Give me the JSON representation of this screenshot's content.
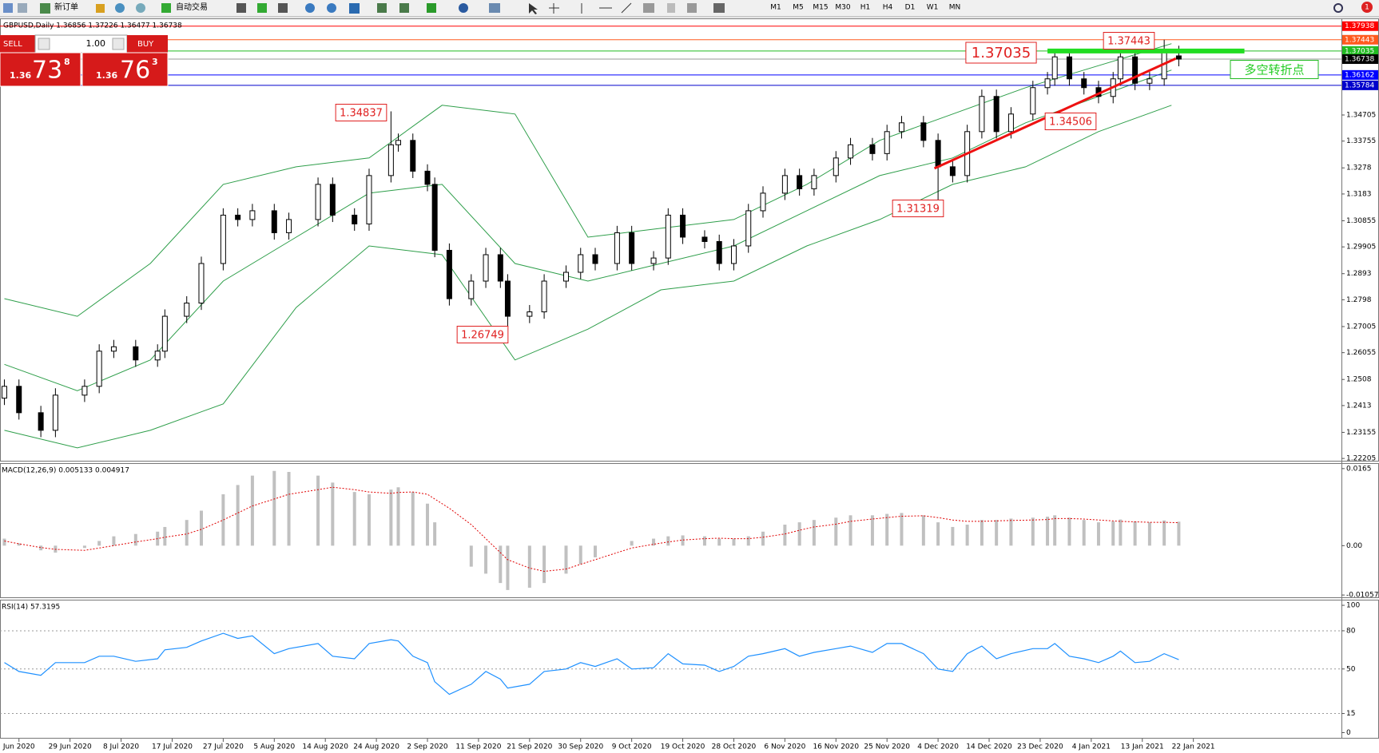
{
  "toolbar": {
    "new_order": "新订单",
    "auto_trading": "自动交易",
    "timeframes": [
      "M1",
      "M5",
      "M15",
      "M30",
      "H1",
      "H4",
      "D1",
      "W1",
      "MN"
    ],
    "notifications": "1"
  },
  "trade_panel": {
    "sell": "SELL",
    "buy": "BUY",
    "lots": "1.00",
    "sell_price": [
      "1.36",
      "73",
      "8"
    ],
    "buy_price": [
      "1.36",
      "76",
      "3"
    ]
  },
  "chart_data": [
    {
      "type": "candlestick",
      "title": "GBPUSD,Daily  1.36856 1.37226 1.36477 1.36738",
      "x": [
        0,
        2,
        5,
        7,
        11,
        13,
        15,
        18,
        21,
        22,
        25,
        27,
        30,
        32,
        34,
        37,
        39,
        43,
        45,
        48,
        50,
        53,
        54,
        56,
        58,
        59,
        61,
        64,
        66,
        68,
        69,
        72,
        74,
        77,
        79,
        81,
        84,
        86,
        89,
        91,
        93,
        96,
        98,
        100,
        102,
        104,
        107,
        109,
        111,
        114,
        116,
        119,
        121,
        123,
        126,
        128,
        130,
        132,
        134,
        136,
        138,
        141,
        143,
        144,
        146,
        148,
        150,
        152,
        153,
        155,
        157,
        159,
        161
      ],
      "open": [
        1.244,
        1.2483,
        1.2387,
        1.2323,
        1.2451,
        1.2483,
        1.2611,
        1.2627,
        1.2579,
        1.2611,
        1.2738,
        1.2786,
        1.293,
        1.3106,
        1.309,
        1.3122,
        1.3042,
        1.309,
        1.3218,
        1.3106,
        1.3074,
        1.325,
        1.3362,
        1.3378,
        1.3266,
        1.3218,
        1.2978,
        1.2802,
        1.2866,
        1.2962,
        1.2866,
        1.2738,
        1.2754,
        1.2866,
        1.2898,
        1.2962,
        1.293,
        1.3042,
        1.293,
        1.295,
        1.3106,
        1.3026,
        1.301,
        1.293,
        1.2994,
        1.3122,
        1.3186,
        1.325,
        1.3202,
        1.325,
        1.3314,
        1.3362,
        1.333,
        1.341,
        1.3442,
        1.3378,
        1.3282,
        1.325,
        1.341,
        1.3538,
        1.341,
        1.3474,
        1.357,
        1.3602,
        1.3682,
        1.3602,
        1.357,
        1.3538,
        1.3602,
        1.3682,
        1.3586,
        1.3602,
        1.36856
      ],
      "high": [
        1.2508,
        1.2508,
        1.2412,
        1.2476,
        1.2508,
        1.2636,
        1.2652,
        1.2652,
        1.2636,
        1.2763,
        1.2811,
        1.2955,
        1.3131,
        1.3131,
        1.3147,
        1.3147,
        1.3115,
        1.3243,
        1.3243,
        1.3131,
        1.3275,
        1.34837,
        1.3403,
        1.3403,
        1.3291,
        1.3243,
        1.3003,
        1.2891,
        1.2987,
        1.2987,
        1.2891,
        1.2779,
        1.2891,
        1.2923,
        1.2987,
        1.2987,
        1.3067,
        1.3067,
        1.2975,
        1.3131,
        1.3131,
        1.3051,
        1.3035,
        1.3019,
        1.3147,
        1.3211,
        1.3275,
        1.3275,
        1.3275,
        1.3339,
        1.3387,
        1.3387,
        1.3435,
        1.3467,
        1.3467,
        1.3403,
        1.3307,
        1.3435,
        1.3563,
        1.3563,
        1.3499,
        1.3595,
        1.3627,
        1.3707,
        1.3707,
        1.3627,
        1.3595,
        1.3627,
        1.3707,
        1.3707,
        1.3627,
        1.37443,
        1.37226
      ],
      "low": [
        1.2415,
        1.2362,
        1.2298,
        1.2298,
        1.2426,
        1.2458,
        1.2586,
        1.2554,
        1.2554,
        1.2586,
        1.2713,
        1.2761,
        1.2905,
        1.3065,
        1.3065,
        1.3017,
        1.3017,
        1.3065,
        1.3081,
        1.3049,
        1.3049,
        1.3225,
        1.3337,
        1.3241,
        1.3193,
        1.2953,
        1.2777,
        1.2777,
        1.2841,
        1.2841,
        1.26749,
        1.2713,
        1.2729,
        1.2841,
        1.2873,
        1.2905,
        1.2905,
        1.2905,
        1.2905,
        1.2925,
        1.3001,
        1.2985,
        1.2905,
        1.2905,
        1.2969,
        1.3097,
        1.3161,
        1.3177,
        1.3177,
        1.3225,
        1.3289,
        1.3305,
        1.3305,
        1.3385,
        1.3353,
        1.31319,
        1.3225,
        1.3225,
        1.3385,
        1.3385,
        1.3385,
        1.34506,
        1.3545,
        1.3577,
        1.3577,
        1.3545,
        1.3513,
        1.3513,
        1.3577,
        1.3561,
        1.3561,
        1.3577,
        1.36477
      ],
      "close": [
        1.2483,
        1.2387,
        1.2323,
        1.2451,
        1.2483,
        1.2611,
        1.2627,
        1.2579,
        1.2611,
        1.2738,
        1.2786,
        1.293,
        1.3106,
        1.309,
        1.3122,
        1.3042,
        1.309,
        1.3218,
        1.3106,
        1.3074,
        1.325,
        1.3362,
        1.3378,
        1.3266,
        1.3218,
        1.2978,
        1.2802,
        1.2866,
        1.2962,
        1.2866,
        1.2738,
        1.2754,
        1.2866,
        1.2898,
        1.2962,
        1.293,
        1.3042,
        1.293,
        1.295,
        1.3106,
        1.3026,
        1.301,
        1.293,
        1.2994,
        1.3122,
        1.3186,
        1.325,
        1.3202,
        1.325,
        1.3314,
        1.3362,
        1.333,
        1.341,
        1.3442,
        1.3378,
        1.3282,
        1.325,
        1.341,
        1.3538,
        1.341,
        1.3474,
        1.357,
        1.3602,
        1.3682,
        1.3602,
        1.357,
        1.3538,
        1.3602,
        1.3682,
        1.3586,
        1.3602,
        1.3698,
        1.36738
      ],
      "up_color": "#ffffff",
      "down_color": "#000000",
      "outline_color": "#000000",
      "bands": {
        "color": "#2e9e4a",
        "x": [
          0,
          10,
          20,
          30,
          40,
          50,
          60,
          70,
          80,
          90,
          100,
          110,
          120,
          130,
          140,
          150,
          160
        ],
        "upper": [
          1.2802,
          1.2738,
          1.293,
          1.3218,
          1.3282,
          1.3314,
          1.3506,
          1.3474,
          1.3026,
          1.3058,
          1.309,
          1.3218,
          1.3378,
          1.3474,
          1.357,
          1.365,
          1.373
        ],
        "middle": [
          1.2563,
          1.2467,
          1.2579,
          1.2866,
          1.3026,
          1.3186,
          1.3218,
          1.293,
          1.2866,
          1.293,
          1.2994,
          1.3122,
          1.325,
          1.3314,
          1.3442,
          1.3538,
          1.3634
        ],
        "lower": [
          1.2323,
          1.2259,
          1.2323,
          1.2419,
          1.277,
          1.2994,
          1.2962,
          1.2579,
          1.2691,
          1.2834,
          1.2866,
          1.2994,
          1.309,
          1.3218,
          1.3282,
          1.341,
          1.3506
        ]
      },
      "xlim": [
        -0.6,
        183.3
      ],
      "ylim": [
        1.22122,
        1.38192
      ],
      "yticks": [
        1.34705,
        1.33755,
        1.3278,
        1.3183,
        1.30855,
        1.29905,
        1.2893,
        1.2798,
        1.27005,
        1.26055,
        1.2508,
        1.2413,
        1.23155,
        1.22205
      ],
      "xticks": [
        {
          "value": 2,
          "label": "Jun 2020"
        },
        {
          "value": 9,
          "label": "29 Jun 2020"
        },
        {
          "value": 16,
          "label": "8 Jul 2020"
        },
        {
          "value": 23,
          "label": "17 Jul 2020"
        },
        {
          "value": 30,
          "label": "27 Jul 2020"
        },
        {
          "value": 37,
          "label": "5 Aug 2020"
        },
        {
          "value": 44,
          "label": "14 Aug 2020"
        },
        {
          "value": 51,
          "label": "24 Aug 2020"
        },
        {
          "value": 58,
          "label": "2 Sep 2020"
        },
        {
          "value": 65,
          "label": "11 Sep 2020"
        },
        {
          "value": 72,
          "label": "21 Sep 2020"
        },
        {
          "value": 79,
          "label": "30 Sep 2020"
        },
        {
          "value": 86,
          "label": "9 Oct 2020"
        },
        {
          "value": 93,
          "label": "19 Oct 2020"
        },
        {
          "value": 100,
          "label": "28 Oct 2020"
        },
        {
          "value": 107,
          "label": "6 Nov 2020"
        },
        {
          "value": 114,
          "label": "16 Nov 2020"
        },
        {
          "value": 121,
          "label": "25 Nov 2020"
        },
        {
          "value": 128,
          "label": "4 Dec 2020"
        },
        {
          "value": 135,
          "label": "14 Dec 2020"
        },
        {
          "value": 142,
          "label": "23 Dec 2020"
        },
        {
          "value": 149,
          "label": "4 Jan 2021"
        },
        {
          "value": 156,
          "label": "13 Jan 2021"
        },
        {
          "value": 163,
          "label": "22 Jan 2021"
        }
      ],
      "price_lines": [
        {
          "value": 1.37938,
          "color": "#ff0000"
        },
        {
          "value": 1.37443,
          "color": "#ff5a1e"
        },
        {
          "value": 1.37035,
          "color": "#22bb22"
        },
        {
          "value": 1.36738,
          "color": "#000000"
        },
        {
          "value": 1.36162,
          "color": "#0000ff"
        },
        {
          "value": 1.35784,
          "color": "#0000cc"
        }
      ],
      "trendline": {
        "x": [
          127.5,
          160.6
        ],
        "y": [
          1.3276,
          1.3676
        ],
        "color": "#ee1111"
      },
      "resistance": {
        "x": [
          143,
          170
        ],
        "y": 1.37035,
        "color": "#22dd22"
      },
      "annotations": [
        "1.34837",
        "1.26749",
        "1.31319",
        "1.34506",
        "1.37035",
        "1.37443",
        "多空转折点"
      ]
    },
    {
      "type": "macd",
      "title": "MACD(12,26,9) 0.005133 0.004917",
      "values": [
        0.0015,
        0.0005,
        -0.001,
        -0.0015,
        -0.0005,
        0.001,
        0.002,
        0.0025,
        0.003,
        0.004,
        0.0055,
        0.0075,
        0.011,
        0.013,
        0.015,
        0.016,
        0.0158,
        0.015,
        0.0135,
        0.0115,
        0.011,
        0.012,
        0.0125,
        0.0115,
        0.009,
        0.005,
        0.0,
        -0.0045,
        -0.006,
        -0.008,
        -0.0095,
        -0.009,
        -0.008,
        -0.006,
        -0.004,
        -0.0025,
        0.0,
        0.001,
        0.0015,
        0.002,
        0.0022,
        0.002,
        0.0015,
        0.0015,
        0.002,
        0.003,
        0.0045,
        0.005,
        0.0055,
        0.006,
        0.0065,
        0.0065,
        0.0068,
        0.007,
        0.0065,
        0.005,
        0.004,
        0.0045,
        0.0055,
        0.0055,
        0.0058,
        0.006,
        0.0062,
        0.0065,
        0.006,
        0.0055,
        0.005,
        0.0052,
        0.0056,
        0.0052,
        0.005,
        0.0054,
        0.005133
      ],
      "signal": [
        0.001,
        0.0004,
        -0.0004,
        -0.0008,
        -0.001,
        -0.0005,
        0.0,
        0.0008,
        0.0015,
        0.0018,
        0.0025,
        0.0035,
        0.0055,
        0.007,
        0.0085,
        0.01,
        0.011,
        0.012,
        0.0125,
        0.012,
        0.0115,
        0.0112,
        0.0114,
        0.0115,
        0.011,
        0.01,
        0.008,
        0.0045,
        0.0015,
        -0.0015,
        -0.003,
        -0.0048,
        -0.0055,
        -0.005,
        -0.004,
        -0.003,
        -0.0015,
        -0.0005,
        0.0003,
        0.0008,
        0.0012,
        0.0015,
        0.0016,
        0.0015,
        0.0015,
        0.0018,
        0.0025,
        0.0033,
        0.004,
        0.0046,
        0.0052,
        0.0057,
        0.006,
        0.0063,
        0.0064,
        0.006,
        0.0055,
        0.0052,
        0.0052,
        0.0053,
        0.0054,
        0.0055,
        0.0056,
        0.0058,
        0.0058,
        0.0057,
        0.0055,
        0.0053,
        0.0052,
        0.0051,
        0.005,
        0.005,
        0.004917
      ],
      "color": "#c0c0c0",
      "signal_color": "#e00000",
      "ylim": [
        -0.01106,
        0.0175
      ],
      "yticks": [
        0.0165,
        {
          "value": 0,
          "label": "0.00"
        },
        -0.010571
      ]
    },
    {
      "type": "rsi",
      "title": "RSI(14) 57.3195",
      "values": [
        55,
        48,
        45,
        55,
        55,
        60,
        60,
        56,
        58,
        65,
        67,
        72,
        78,
        74,
        76,
        62,
        66,
        70,
        60,
        58,
        70,
        73,
        72,
        60,
        55,
        40,
        30,
        38,
        48,
        42,
        35,
        38,
        48,
        50,
        55,
        52,
        58,
        50,
        51,
        62,
        54,
        53,
        48,
        52,
        60,
        62,
        66,
        60,
        63,
        66,
        68,
        63,
        70,
        70,
        62,
        50,
        48,
        62,
        68,
        58,
        62,
        66,
        66,
        70,
        60,
        58,
        55,
        60,
        64,
        55,
        56,
        62,
        57.3195
      ],
      "color": "#1e90ff",
      "ylim": [
        -4.1,
        103.8
      ],
      "yticks": [
        100,
        80,
        50,
        15,
        0
      ]
    }
  ]
}
